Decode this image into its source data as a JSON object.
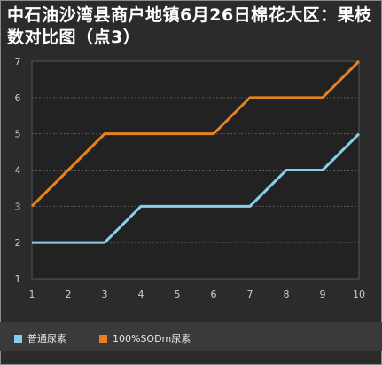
{
  "chart_data": {
    "type": "line",
    "title": "中石油沙湾县商户地镇6月26日棉花大区：果枝数对比图（点3）",
    "x": [
      1,
      2,
      3,
      4,
      5,
      6,
      7,
      8,
      9,
      10
    ],
    "xlim": [
      1,
      10
    ],
    "ylim": [
      1,
      7
    ],
    "yticks": [
      1,
      2,
      3,
      4,
      5,
      6,
      7
    ],
    "grid": true,
    "legend_position": "bottom",
    "series": [
      {
        "name": "普通尿素",
        "color": "#87ceeb",
        "values": [
          2,
          2,
          2,
          3,
          3,
          3,
          3,
          4,
          4,
          5
        ]
      },
      {
        "name": "100%SODm尿素",
        "color": "#e8821e",
        "values": [
          3,
          4,
          5,
          5,
          5,
          5,
          6,
          6,
          6,
          7
        ]
      }
    ]
  }
}
